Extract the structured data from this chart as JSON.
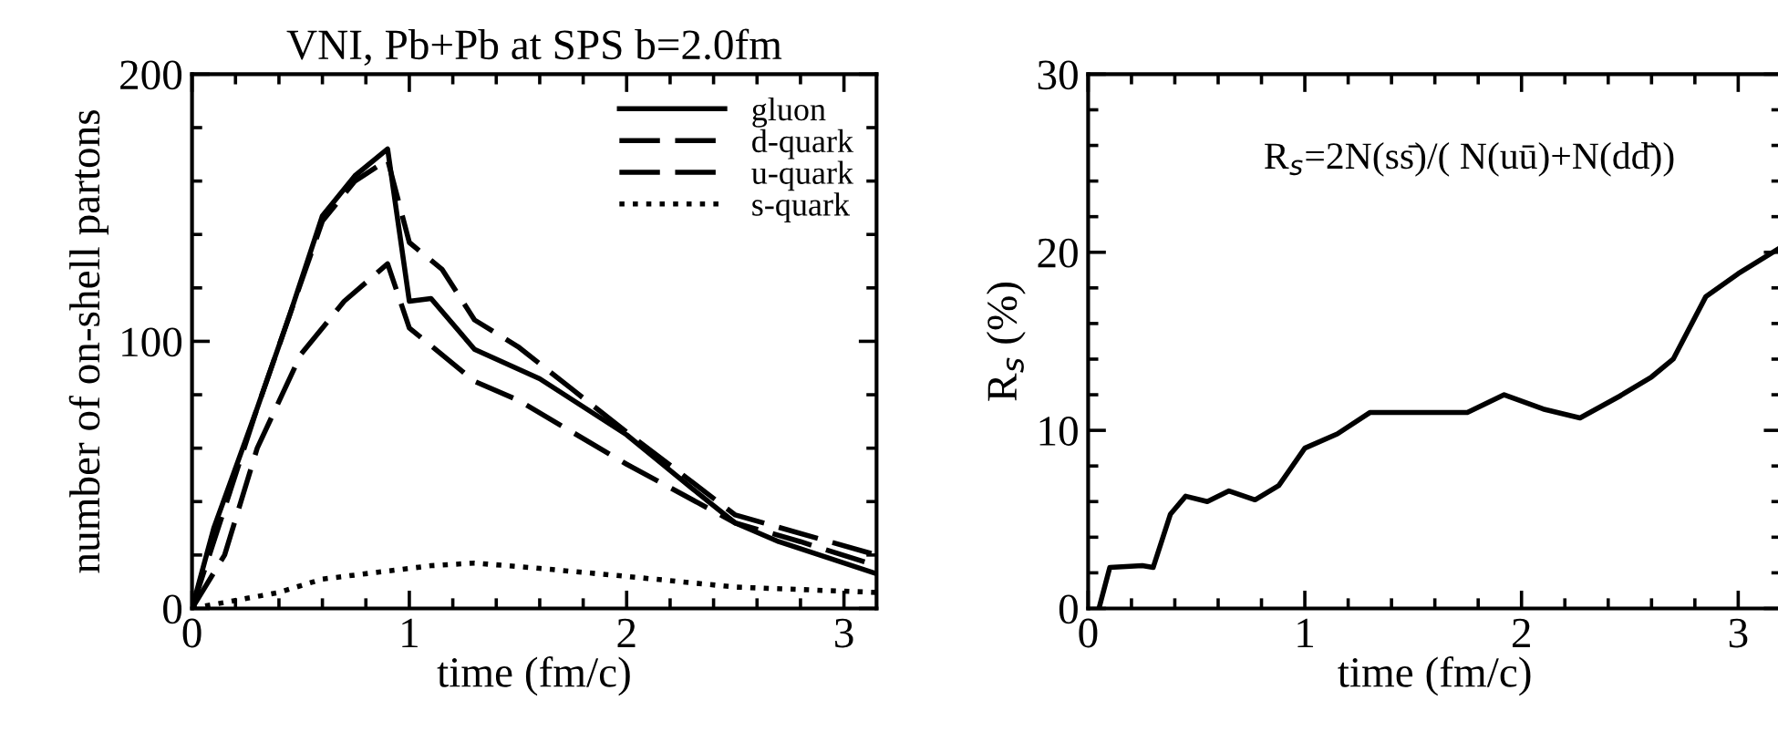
{
  "chart_data": [
    {
      "type": "line",
      "title": "VNI, Pb+Pb at SPS b=2.0fm",
      "xlabel": "time (fm/c)",
      "ylabel": "number of on-shell partons",
      "xlim": [
        0,
        3.15
      ],
      "ylim": [
        0,
        200
      ],
      "xticks": [
        0,
        1,
        2,
        3
      ],
      "yticks": [
        0,
        100,
        200
      ],
      "grid": false,
      "legend": "top right",
      "marker": "none",
      "series": [
        {
          "name": "gluon",
          "color": "#000000",
          "line_style": "solid",
          "x": [
            0,
            0.1,
            0.3,
            0.45,
            0.6,
            0.75,
            0.9,
            1.0,
            1.1,
            1.3,
            1.6,
            2.0,
            2.3,
            2.5,
            2.7,
            3.15
          ],
          "values": [
            0,
            30,
            75,
            110,
            147,
            162,
            172,
            115,
            116,
            97,
            86,
            65,
            45,
            32,
            25,
            13
          ]
        },
        {
          "name": "d-quark",
          "color": "#000000",
          "line_style": "dashed",
          "x": [
            0,
            0.1,
            0.3,
            0.45,
            0.6,
            0.75,
            0.9,
            1.0,
            1.15,
            1.3,
            1.5,
            1.75,
            2.0,
            2.5,
            3.15
          ],
          "values": [
            0,
            25,
            75,
            110,
            145,
            160,
            168,
            137,
            127,
            108,
            98,
            82,
            66,
            35,
            20
          ]
        },
        {
          "name": "u-quark",
          "color": "#000000",
          "line_style": "dashed",
          "x": [
            0,
            0.15,
            0.3,
            0.5,
            0.7,
            0.9,
            1.0,
            1.3,
            1.5,
            2.0,
            2.5,
            2.8,
            3.15
          ],
          "values": [
            0,
            20,
            60,
            95,
            115,
            129,
            105,
            85,
            78,
            54,
            32,
            25,
            16
          ]
        },
        {
          "name": "s-quark",
          "color": "#000000",
          "line_style": "dotted",
          "x": [
            0,
            0.2,
            0.4,
            0.6,
            0.9,
            1.1,
            1.3,
            1.6,
            2.0,
            2.5,
            3.15
          ],
          "values": [
            0,
            3,
            6,
            11,
            14,
            16,
            17,
            15,
            12,
            8,
            6
          ]
        }
      ]
    },
    {
      "type": "line",
      "xlabel": "time (fm/c)",
      "ylabel": "R$_{s}$ (%)",
      "xlim": [
        0,
        3.2
      ],
      "ylim": [
        0,
        30
      ],
      "xticks": [
        0,
        1,
        2,
        3
      ],
      "yticks": [
        0,
        10,
        20,
        30
      ],
      "grid": false,
      "legend": false,
      "marker": "none",
      "line_style": "solid",
      "annotations": [
        "R$_{s}$=2N(ss̄)/( N(uū)+N(dd̄))"
      ],
      "series": [
        {
          "color": "#000000",
          "x": [
            0.05,
            0.1,
            0.25,
            0.3,
            0.38,
            0.45,
            0.55,
            0.65,
            0.77,
            0.88,
            1.0,
            1.15,
            1.3,
            1.75,
            1.92,
            2.1,
            2.27,
            2.45,
            2.6,
            2.7,
            2.85,
            3.0,
            3.2
          ],
          "values": [
            0,
            2.3,
            2.4,
            2.3,
            5.3,
            6.3,
            6.0,
            6.6,
            6.1,
            6.9,
            9.0,
            9.8,
            11,
            11,
            12,
            11.2,
            10.7,
            11.9,
            13,
            14,
            17.5,
            18.8,
            20.3
          ]
        }
      ]
    }
  ]
}
